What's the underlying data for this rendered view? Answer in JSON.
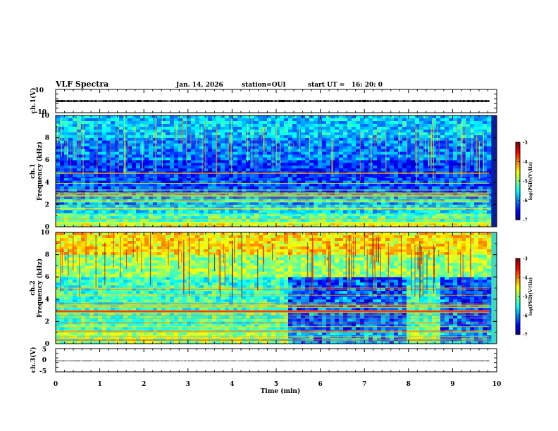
{
  "header": {
    "title": "VLF Spectra",
    "date": "Jan. 14, 2026",
    "station": "station=OUI",
    "start": "start UT =   16: 20: 0"
  },
  "chart_data": [
    {
      "type": "line",
      "name": "ch1-waveform",
      "ylabel": "ch.1(V)",
      "ylim": [
        -10,
        10
      ],
      "yticks": [
        "10",
        "-10"
      ],
      "x_range": [
        0,
        9.83
      ],
      "y_level": 0,
      "y_amplitude": 1.0
    },
    {
      "type": "heatmap",
      "name": "ch1-spectrogram",
      "ylabel": "ch.1\nFrequency (kHz)",
      "ylim": [
        0,
        10
      ],
      "yticks": [
        "0",
        "2",
        "4",
        "6",
        "8",
        "10"
      ],
      "x_range": [
        0,
        9.83
      ],
      "colorbar": {
        "label": "log(PSD)(V²/Hz)",
        "ticks": [
          "-3",
          "-4",
          "-5",
          "-6",
          "-7"
        ],
        "range": [
          -7,
          -3
        ]
      },
      "bands": [
        {
          "f": [
            0,
            0.4
          ],
          "level": -4.6
        },
        {
          "f": [
            0.4,
            1.2
          ],
          "level": -5.2
        },
        {
          "f": [
            1.2,
            2.0
          ],
          "level": -5.6
        },
        {
          "f": [
            2.0,
            3.0
          ],
          "level": -5.9
        },
        {
          "f": [
            3.0,
            4.4
          ],
          "level": -6.2
        },
        {
          "f": [
            4.4,
            6.0
          ],
          "level": -6.3
        },
        {
          "f": [
            6.0,
            8.0
          ],
          "level": -6.0
        },
        {
          "f": [
            8.0,
            10.0
          ],
          "level": -5.7
        }
      ]
    },
    {
      "type": "heatmap",
      "name": "ch2-spectrogram",
      "ylabel": "ch.2\nFrequency (kHz)",
      "ylim": [
        0,
        10
      ],
      "yticks": [
        "0",
        "2",
        "4",
        "6",
        "8",
        "10"
      ],
      "x_range": [
        0,
        9.83
      ],
      "colorbar": {
        "label": "log(PSD)(V²/Hz)",
        "ticks": [
          "-3",
          "-4",
          "-5",
          "-6",
          "-7"
        ],
        "range": [
          -7,
          -3
        ]
      },
      "bands": [
        {
          "f": [
            0,
            1.0
          ],
          "level": -4.9
        },
        {
          "f": [
            1.0,
            3.0
          ],
          "level": -5.2
        },
        {
          "f": [
            3.0,
            6.0
          ],
          "level": -5.3
        },
        {
          "f": [
            6.0,
            8.0
          ],
          "level": -4.9
        },
        {
          "f": [
            8.0,
            10.0
          ],
          "level": -4.4
        }
      ],
      "quiet_intervals_min": [
        [
          5.2,
          7.9
        ],
        [
          8.7,
          9.83
        ]
      ]
    },
    {
      "type": "line",
      "name": "ch3-waveform",
      "ylabel": "ch.3(V)",
      "ylim": [
        -5,
        5
      ],
      "yticks": [
        "5",
        "0",
        "-5"
      ],
      "x_range": [
        0,
        9.83
      ],
      "y_level": -0.3,
      "y_amplitude": 0.15
    }
  ],
  "time_axis": {
    "xlabel": "Time (min)",
    "xlim": [
      0,
      10
    ],
    "ticks": [
      "0",
      "1",
      "2",
      "3",
      "4",
      "5",
      "6",
      "7",
      "8",
      "9",
      "10"
    ]
  }
}
